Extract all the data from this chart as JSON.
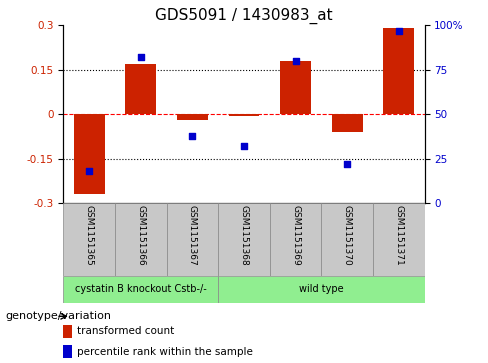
{
  "title": "GDS5091 / 1430983_at",
  "samples": [
    "GSM1151365",
    "GSM1151366",
    "GSM1151367",
    "GSM1151368",
    "GSM1151369",
    "GSM1151370",
    "GSM1151371"
  ],
  "bar_values": [
    -0.27,
    0.17,
    -0.02,
    -0.005,
    0.18,
    -0.06,
    0.29
  ],
  "percentile_values": [
    18,
    82,
    38,
    32,
    80,
    22,
    97
  ],
  "bar_color": "#CC2200",
  "dot_color": "#0000CC",
  "ylim": [
    -0.3,
    0.3
  ],
  "yticks_left": [
    -0.3,
    -0.15,
    0,
    0.15,
    0.3
  ],
  "yticks_right": [
    0,
    25,
    50,
    75,
    100
  ],
  "group1_label": "cystatin B knockout Cstb-/-",
  "group1_count": 3,
  "group2_label": "wild type",
  "group2_count": 4,
  "group_color": "#90EE90",
  "sample_box_color": "#C8C8C8",
  "legend_label1": "transformed count",
  "legend_label2": "percentile rank within the sample",
  "annotation_label": "genotype/variation",
  "background_color": "#ffffff",
  "title_fontsize": 11,
  "tick_fontsize": 7.5,
  "sample_fontsize": 6.5,
  "group_fontsize": 7,
  "legend_fontsize": 7.5,
  "annot_fontsize": 8
}
